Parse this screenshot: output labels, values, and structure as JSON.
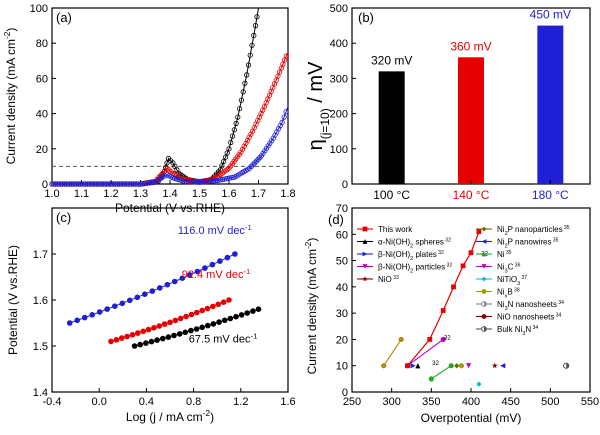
{
  "chart_data": [
    {
      "panel": "(a)",
      "type": "line",
      "xlabel": "Potential (V vs.RHE)",
      "ylabel": "Current density (mA cm",
      "ylabel_sup": "-2",
      "ylabel_end": ")",
      "xlim": [
        1.0,
        1.8
      ],
      "ylim": [
        0,
        100
      ],
      "xticks": [
        "1.0",
        "1.1",
        "1.2",
        "1.3",
        "1.4",
        "1.5",
        "1.6",
        "1.7",
        "1.8"
      ],
      "yticks": [
        "0",
        "20",
        "40",
        "60",
        "80",
        "100"
      ],
      "reference_line_y": 10,
      "series": [
        {
          "color": "#000000",
          "points": [
            [
              1.0,
              0
            ],
            [
              1.3,
              0
            ],
            [
              1.36,
              1.5
            ],
            [
              1.38,
              7
            ],
            [
              1.395,
              14.5
            ],
            [
              1.41,
              12
            ],
            [
              1.43,
              6
            ],
            [
              1.46,
              2.5
            ],
            [
              1.5,
              1.2
            ],
            [
              1.54,
              2.5
            ],
            [
              1.57,
              8
            ],
            [
              1.6,
              20
            ],
            [
              1.63,
              38
            ],
            [
              1.66,
              62
            ],
            [
              1.69,
              90
            ],
            [
              1.7,
              100
            ]
          ]
        },
        {
          "color": "#e60000",
          "points": [
            [
              1.0,
              0
            ],
            [
              1.3,
              0
            ],
            [
              1.35,
              1.5
            ],
            [
              1.375,
              6
            ],
            [
              1.39,
              9
            ],
            [
              1.41,
              6
            ],
            [
              1.44,
              3
            ],
            [
              1.48,
              1.5
            ],
            [
              1.52,
              1.5
            ],
            [
              1.56,
              4
            ],
            [
              1.6,
              9
            ],
            [
              1.64,
              18
            ],
            [
              1.68,
              30
            ],
            [
              1.72,
              44
            ],
            [
              1.76,
              59
            ],
            [
              1.8,
              75
            ]
          ]
        },
        {
          "color": "#1f1fd6",
          "points": [
            [
              1.0,
              0
            ],
            [
              1.3,
              0
            ],
            [
              1.35,
              1
            ],
            [
              1.375,
              4
            ],
            [
              1.39,
              5.2
            ],
            [
              1.41,
              3.5
            ],
            [
              1.45,
              1.5
            ],
            [
              1.5,
              1
            ],
            [
              1.56,
              2
            ],
            [
              1.62,
              4
            ],
            [
              1.67,
              9
            ],
            [
              1.71,
              16
            ],
            [
              1.75,
              26
            ],
            [
              1.78,
              35
            ],
            [
              1.8,
              44
            ]
          ]
        }
      ]
    },
    {
      "panel": "(b)",
      "type": "bar",
      "ylabel_main": "η",
      "ylabel_sub": "(j=10)",
      "ylabel_unit": " / mV",
      "ylim": [
        0,
        500
      ],
      "yticks": [
        "0",
        "100",
        "200",
        "300",
        "400",
        "500"
      ],
      "categories": [
        "100 °C",
        "140 °C",
        "180 °C"
      ],
      "values": [
        320,
        360,
        450
      ],
      "value_labels": [
        "320 mV",
        "360 mV",
        "450 mV"
      ],
      "colors": [
        "#000000",
        "#e60000",
        "#1f1fd6"
      ]
    },
    {
      "panel": "(c)",
      "type": "scatter",
      "xlabel": "Log (j / mA cm",
      "xlabel_sup": "-2",
      "xlabel_end": ")",
      "ylabel": "Potential (V vs.RHE)",
      "xlim": [
        -0.4,
        1.6
      ],
      "ylim": [
        1.4,
        1.8
      ],
      "xticks": [
        "-0.4",
        "0.0",
        "0.4",
        "0.8",
        "1.2",
        "1.6"
      ],
      "yticks": [
        "1.4",
        "1.5",
        "1.6",
        "1.7"
      ],
      "series": [
        {
          "color": "#1f1fd6",
          "label": "116.0 mV dec",
          "label_sup": "-1",
          "label_pos": [
            0.98,
            1.744
          ],
          "x_start": -0.25,
          "x_end": 1.15,
          "y_start": 1.55,
          "y_end": 1.7
        },
        {
          "color": "#e60000",
          "label": "92.4 mV dec",
          "label_sup": "-1",
          "label_pos": [
            0.99,
            1.648
          ],
          "x_start": 0.1,
          "x_end": 1.1,
          "y_start": 1.51,
          "y_end": 1.6
        },
        {
          "color": "#000000",
          "label": "67.5 mV dec",
          "label_sup": "-1",
          "label_pos": [
            1.05,
            1.508
          ],
          "x_start": 0.3,
          "x_end": 1.35,
          "y_start": 1.5,
          "y_end": 1.58
        }
      ]
    },
    {
      "panel": "(d)",
      "type": "scatter",
      "xlabel": "Overpotential (mV)",
      "ylabel": "Current density (mA cm",
      "ylabel_sup": "-2",
      "ylabel_end": ")",
      "xlim": [
        250,
        550
      ],
      "ylim": [
        0,
        70
      ],
      "xticks": [
        "250",
        "300",
        "350",
        "400",
        "450",
        "500",
        "550"
      ],
      "yticks": [
        "0",
        "10",
        "20",
        "30",
        "40",
        "50",
        "60",
        "70"
      ],
      "this_work": {
        "color": "#e60000",
        "points": [
          [
            320,
            10
          ],
          [
            348,
            20
          ],
          [
            365,
            31
          ],
          [
            378,
            40
          ],
          [
            390,
            48
          ],
          [
            400,
            53
          ],
          [
            410,
            61
          ]
        ]
      },
      "lines": [
        {
          "color": "#b8860b",
          "points": [
            [
              290,
              10
            ],
            [
              312,
              20
            ]
          ]
        },
        {
          "color": "#c000c0",
          "points": [
            [
              320,
              10
            ],
            [
              365,
              20
            ]
          ]
        },
        {
          "color": "#22aa22",
          "points": [
            [
              350,
              5
            ],
            [
              375,
              10
            ]
          ]
        }
      ],
      "legend_left": [
        {
          "text": "This work",
          "ref": "",
          "color": "#e60000",
          "marker": "square"
        },
        {
          "text": "α-Ni(OH)",
          "sub": "2",
          "text2": " spheres",
          "ref": "32",
          "color": "#000000",
          "marker": "tri-up"
        },
        {
          "text": "β-Ni(OH)",
          "sub": "2",
          "text2": " plates",
          "ref": "32",
          "color": "#1f1fd6",
          "marker": "tri-right"
        },
        {
          "text": "β-Ni(OH)",
          "sub": "2",
          "text2": " particles",
          "ref": "32",
          "color": "#c000c0",
          "marker": "tri-down"
        },
        {
          "text": "NiO",
          "ref": "33",
          "color": "#8b0000",
          "marker": "star"
        }
      ],
      "legend_right": [
        {
          "text": "Ni",
          "sub": "2",
          "text2": "P nanoparticles",
          "ref": "35",
          "color": "#6b6b00",
          "marker": "diamond"
        },
        {
          "text": "Ni",
          "sub": "2",
          "text2": "P nanowires",
          "ref": "35",
          "color": "#1f1fd6",
          "marker": "tri-left"
        },
        {
          "text": "Ni",
          "ref": "35",
          "color": "#22aa22",
          "marker": "tri-up"
        },
        {
          "text": "Ni",
          "sub": "3",
          "text2": "C",
          "ref": "36",
          "color": "#c000c0",
          "marker": "tri-down"
        },
        {
          "text": "NiTiO",
          "sub": "3",
          "ref": "37",
          "color": "#00bcd4",
          "marker": "diamond"
        },
        {
          "text": "Ni",
          "sub": "x",
          "text2": "B",
          "ref": "38",
          "color": "#9aa000",
          "marker": "circle"
        },
        {
          "text": "Ni",
          "sub": "3",
          "text2": "N nanosheets",
          "ref": "34",
          "color": "#8888aa",
          "marker": "circle-half"
        },
        {
          "text": "NiO nanosheets",
          "ref": "34",
          "color": "#8b0000",
          "marker": "circle"
        },
        {
          "text": "Bulk Ni",
          "sub": "3",
          "text2": "N",
          "ref": "34",
          "color": "#555555",
          "marker": "circle-half"
        }
      ],
      "scatter_points": [
        {
          "x": 333,
          "y": 10,
          "color": "#000000",
          "marker": "tri-up"
        },
        {
          "x": 327,
          "y": 10,
          "color": "#1f1fd6",
          "marker": "tri-right"
        },
        {
          "x": 382,
          "y": 10,
          "color": "#6b6b00",
          "marker": "diamond"
        },
        {
          "x": 440,
          "y": 10,
          "color": "#1f1fd6",
          "marker": "tri-left"
        },
        {
          "x": 410,
          "y": 3,
          "color": "#00bcd4",
          "marker": "diamond"
        },
        {
          "x": 520,
          "y": 10,
          "color": "#555555",
          "marker": "circle-half"
        },
        {
          "x": 430,
          "y": 10,
          "color": "#8b0000",
          "marker": "star"
        },
        {
          "x": 397,
          "y": 10,
          "color": "#c000c0",
          "marker": "tri-down"
        },
        {
          "x": 388,
          "y": 10,
          "color": "#9aa000",
          "marker": "circle"
        }
      ],
      "ref_labels": [
        {
          "text": "32",
          "x": 413,
          "y": 52
        },
        {
          "text": "32",
          "x": 351,
          "y": 10.3
        },
        {
          "text": "32",
          "x": 366,
          "y": 20
        }
      ]
    }
  ]
}
